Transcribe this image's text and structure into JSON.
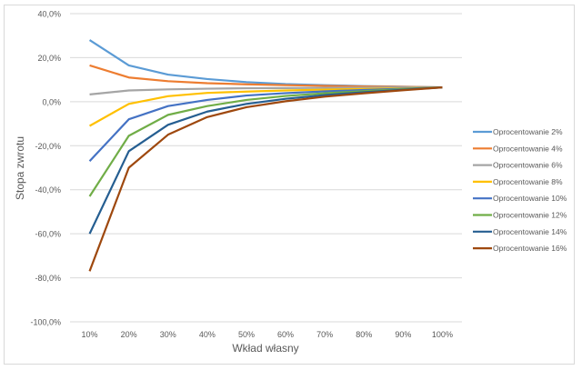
{
  "chart_data": {
    "type": "line",
    "title": "",
    "xlabel": "Wkład własny",
    "ylabel": "Stopa zwrotu",
    "categories": [
      "10%",
      "20%",
      "30%",
      "40%",
      "50%",
      "60%",
      "70%",
      "80%",
      "90%",
      "100%"
    ],
    "ylim": [
      -100,
      40
    ],
    "yticks": [
      "-100,0%",
      "-80,0%",
      "-60,0%",
      "-40,0%",
      "-20,0%",
      "0,0%",
      "20,0%",
      "40,0%"
    ],
    "ytick_values": [
      -100,
      -80,
      -60,
      -40,
      -20,
      0,
      20,
      40
    ],
    "grid": true,
    "legend_position": "right",
    "series": [
      {
        "name": "Oprocentowanie 2%",
        "color": "#5b9bd5",
        "values": [
          28,
          16.5,
          12.3,
          10.3,
          8.9,
          8,
          7.5,
          7.1,
          6.8,
          6.5
        ]
      },
      {
        "name": "Oprocentowanie 4%",
        "color": "#ed7d31",
        "values": [
          16.5,
          11,
          9.3,
          8.4,
          7.9,
          7.5,
          7.2,
          6.9,
          6.7,
          6.5
        ]
      },
      {
        "name": "Oprocentowanie 6%",
        "color": "#a5a5a5",
        "values": [
          3.3,
          5.1,
          5.6,
          5.9,
          6.1,
          6.2,
          6.3,
          6.4,
          6.5,
          6.5
        ]
      },
      {
        "name": "Oprocentowanie 8%",
        "color": "#ffc000",
        "values": [
          -11,
          -1,
          2.5,
          4,
          4.6,
          5.1,
          5.5,
          5.8,
          6.1,
          6.5
        ]
      },
      {
        "name": "Oprocentowanie 10%",
        "color": "#4472c4",
        "values": [
          -27,
          -8,
          -2,
          0.8,
          2.8,
          3.9,
          4.7,
          5.3,
          5.9,
          6.5
        ]
      },
      {
        "name": "Oprocentowanie 12%",
        "color": "#70ad47",
        "values": [
          -43,
          -15.5,
          -6,
          -2,
          0.8,
          2.6,
          3.8,
          4.8,
          5.7,
          6.5
        ]
      },
      {
        "name": "Oprocentowanie 14%",
        "color": "#255e91",
        "values": [
          -60,
          -22.5,
          -10.5,
          -4.5,
          -1,
          1.3,
          3,
          4.3,
          5.4,
          6.5
        ]
      },
      {
        "name": "Oprocentowanie 16%",
        "color": "#9e480e",
        "values": [
          -77,
          -30,
          -15,
          -7,
          -2.5,
          0.2,
          2.3,
          3.8,
          5.2,
          6.5
        ]
      }
    ]
  }
}
